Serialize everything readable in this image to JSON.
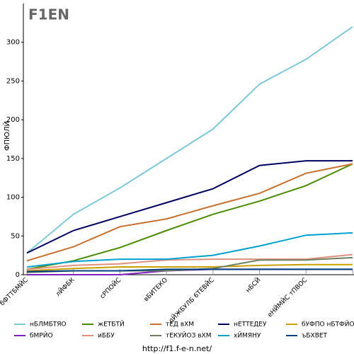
{
  "chart_data": {
    "type": "line",
    "logo": "F1EN",
    "y_label": "ФПЮЛЙ",
    "footer": "http://f1.f-e-n.net/",
    "categories": [
      "бФТТБМЙС",
      "лЙФБК",
      "сРПОЙС",
      "вБИТЕКО",
      "дЙЖБУЛБ 6ТЕВЙС",
      "нБСЙ",
      "еНЙМЙС тПВОС",
      null
    ],
    "ylim": [
      0,
      350
    ],
    "yticks": [
      0,
      50,
      100,
      150,
      200,
      250,
      300
    ],
    "series": [
      {
        "name": "нБЛМБТЯО",
        "color": "#7ec8d8",
        "values": [
          28,
          78,
          112,
          150,
          188,
          246,
          278,
          320
        ]
      },
      {
        "name": "жЕТБТЙ",
        "color": "#4c8c00",
        "values": [
          7,
          18,
          35,
          57,
          78,
          95,
          115,
          143
        ]
      },
      {
        "name": "тЕД вХМ",
        "color": "#c87030",
        "values": [
          18,
          36,
          62,
          72,
          89,
          105,
          131,
          143
        ]
      },
      {
        "name": "нЕТТЕДЕУ",
        "color": "#000060",
        "values": [
          28,
          57,
          75,
          93,
          111,
          141,
          147,
          147
        ]
      },
      {
        "name": "бУФПО нБТФЙО",
        "color": "#c8a000",
        "values": [
          5,
          8,
          10,
          10,
          10,
          12,
          13,
          13
        ]
      },
      {
        "name": "бМРЙО",
        "color": "#8020c0",
        "values": [
          0,
          0,
          0,
          5,
          7,
          7,
          7,
          7
        ]
      },
      {
        "name": "иББУ",
        "color": "#e09080",
        "values": [
          7,
          12,
          14,
          19,
          20,
          20,
          20,
          26
        ]
      },
      {
        "name": "тЕКУЙОЗ вХМ",
        "color": "#708060",
        "values": [
          3,
          5,
          5,
          5,
          8,
          19,
          19,
          22
        ]
      },
      {
        "name": "хЙМЯНУ",
        "color": "#00a0d0",
        "values": [
          10,
          17,
          20,
          20,
          25,
          37,
          51,
          54
        ]
      },
      {
        "name": "ъБХВЕТ",
        "color": "#004080",
        "values": [
          4,
          5,
          5,
          7,
          7,
          7,
          7,
          7
        ]
      }
    ]
  }
}
